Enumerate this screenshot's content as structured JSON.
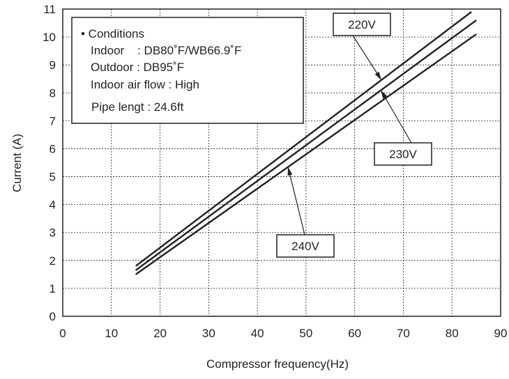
{
  "chart_data": {
    "type": "line",
    "xlabel": "Compressor frequency(Hz)",
    "ylabel": "Current (A)",
    "xlim": [
      0,
      90
    ],
    "ylim": [
      0,
      11
    ],
    "xticks": [
      0,
      10,
      20,
      30,
      40,
      50,
      60,
      70,
      80,
      90
    ],
    "yticks": [
      0,
      1,
      2,
      3,
      4,
      5,
      6,
      7,
      8,
      9,
      10,
      11
    ],
    "grid": true,
    "series": [
      {
        "name": "220V",
        "x": [
          15,
          84
        ],
        "y": [
          1.8,
          10.9
        ]
      },
      {
        "name": "230V",
        "x": [
          15,
          85
        ],
        "y": [
          1.65,
          10.6
        ]
      },
      {
        "name": "240V",
        "x": [
          15,
          85
        ],
        "y": [
          1.5,
          10.1
        ]
      }
    ],
    "conditions": {
      "heading": "• Conditions",
      "lines": [
        "Indoor    : DB80˚F/WB66.9˚F",
        "Outdoor : DB95˚F",
        "Indoor air flow : High",
        "Pipe lengt : 24.6ft"
      ]
    },
    "line_color": "#231f20"
  }
}
